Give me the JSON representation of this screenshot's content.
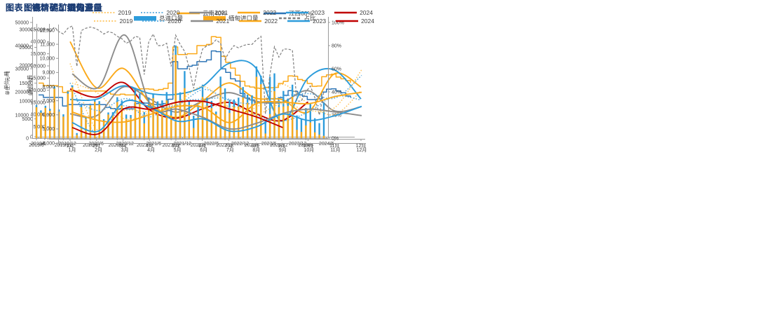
{
  "page_background": "#ffffff",
  "title_color": "#1D3E75",
  "chart_data": [
    {
      "type": "line",
      "line_mode": "step",
      "title": "图表：锡精矿加工费",
      "ylabel": "单位：元/吨",
      "ylim": [
        0,
        30000
      ],
      "y_ticks": [
        [
          30000,
          "30000"
        ],
        [
          25000,
          "25000"
        ],
        [
          20000,
          "20000"
        ],
        [
          15000,
          "15000"
        ],
        [
          10000,
          "10000"
        ],
        [
          5000,
          "5000"
        ],
        [
          0,
          "0"
        ]
      ],
      "x_tick_labels": [
        "2019/6",
        "2019/12",
        "2020/6",
        "2020/12",
        "2021/6",
        "2021/12",
        "2022/6",
        "2022/12",
        "2023/6",
        "2023/12",
        "2024/6"
      ],
      "x_tick_every": 6,
      "x_range_note": "monthly 2019/6 - 2024/11",
      "legend_position": "top-center",
      "grid": false,
      "series": [
        {
          "name": "云南40%",
          "color": "#FBA919",
          "dash": null,
          "values": [
            15000,
            14300,
            14300,
            14300,
            14000,
            12400,
            12800,
            12800,
            12800,
            12800,
            12800,
            12800,
            12800,
            12800,
            12300,
            11900,
            11700,
            11900,
            11700,
            11700,
            13000,
            13400,
            13400,
            13300,
            13000,
            13200,
            13500,
            15000,
            25100,
            23000,
            23000,
            23200,
            23200,
            25500,
            25500,
            25800,
            28000,
            27800,
            22500,
            20800,
            19200,
            17200,
            15500,
            14200,
            13900,
            13600,
            13500,
            13800,
            13700,
            13800,
            14900,
            15500,
            17000,
            16900,
            16000,
            15700,
            14900,
            14100,
            14200,
            16800,
            17300,
            17500,
            16700,
            16200,
            15700,
            15100
          ]
        },
        {
          "name": "江西60%",
          "color": "#2E75B6",
          "dash": null,
          "values": [
            11700,
            11000,
            11000,
            11000,
            11000,
            8600,
            9000,
            9000,
            9000,
            9000,
            9000,
            9000,
            9000,
            9000,
            8200,
            7900,
            7700,
            7900,
            7800,
            7800,
            9300,
            9500,
            9400,
            9300,
            9000,
            9100,
            9300,
            10500,
            21000,
            19000,
            19000,
            19700,
            20000,
            21000,
            21000,
            21500,
            24000,
            23800,
            19000,
            18000,
            16200,
            15600,
            12100,
            10800,
            10300,
            9600,
            9500,
            9700,
            9700,
            9800,
            10900,
            11600,
            12900,
            12700,
            11700,
            11300,
            10400,
            10400,
            10600,
            12500,
            13300,
            13400,
            12800,
            12300,
            11400,
            11000
          ]
        }
      ]
    },
    {
      "type": "line",
      "line_mode": "smooth",
      "title": "图表：锡矿进口量",
      "ylabel": "单位：吨",
      "ylim": [
        0,
        45000
      ],
      "y_ticks": [
        [
          45000,
          "45,000"
        ],
        [
          40000,
          "40,000"
        ],
        [
          35000,
          "35,000"
        ],
        [
          30000,
          "30,000"
        ],
        [
          25000,
          "25,000"
        ],
        [
          20000,
          "20,000"
        ],
        [
          15000,
          "15,000"
        ],
        [
          10000,
          "10,000"
        ],
        [
          5000,
          "5,000"
        ],
        [
          0,
          "-"
        ]
      ],
      "categories": [
        "1月",
        "2月",
        "3月",
        "4月",
        "5月",
        "6月",
        "7月",
        "8月",
        "9月",
        "10月",
        "11月",
        "12月"
      ],
      "legend_position": "top-right",
      "grid": false,
      "series": [
        {
          "name": "2019",
          "color": "#FFC55E",
          "dash": "dot",
          "values": [
            31000,
            4000,
            11500,
            11200,
            13800,
            13500,
            13500,
            12700,
            22400,
            14500,
            10000,
            19800
          ]
        },
        {
          "name": "2020",
          "color": "#56A8DC",
          "dash": "dot",
          "values": [
            23000,
            2000,
            13500,
            9000,
            15000,
            16300,
            16300,
            10000,
            7400,
            11000,
            17500,
            16000
          ]
        },
        {
          "name": "2021",
          "color": "#8C8C8C",
          "dash": null,
          "values": [
            10300,
            9500,
            21300,
            16500,
            11000,
            15500,
            19000,
            15500,
            15000,
            19800,
            11500,
            13200
          ]
        },
        {
          "name": "2022",
          "color": "#FBA919",
          "dash": null,
          "values": [
            40000,
            21000,
            29000,
            15000,
            8800,
            15500,
            23000,
            16800,
            16200,
            11000,
            26800,
            21300
          ]
        },
        {
          "name": "2023",
          "color": "#2D9CDB",
          "dash": null,
          "values": [
            16200,
            16300,
            21800,
            18700,
            18300,
            21500,
            31000,
            29500,
            7300,
            25000,
            28300,
            16400
          ]
        },
        {
          "name": "2024",
          "color": "#C00000",
          "dash": null,
          "values": [
            20500,
            17200,
            23200,
            12000,
            8500,
            12300,
            15000,
            10500,
            7500,
            15200
          ]
        }
      ]
    },
    {
      "type": "bar+line",
      "title": "图表：锡精矿：缅甸进口",
      "ylabel": "单位：吨",
      "ylim_left": [
        0,
        50000
      ],
      "y_ticks_left": [
        [
          50000,
          "50000"
        ],
        [
          40000,
          "40000"
        ],
        [
          30000,
          "30000"
        ],
        [
          20000,
          "20000"
        ],
        [
          10000,
          "10000"
        ],
        [
          0,
          "0"
        ]
      ],
      "ylim_right": [
        0,
        100
      ],
      "y_ticks_right": [
        [
          100,
          "100%"
        ],
        [
          80,
          "80%"
        ],
        [
          60,
          "60%"
        ],
        [
          40,
          "40%"
        ],
        [
          20,
          "20%"
        ],
        [
          0,
          "0%"
        ]
      ],
      "x_tick_labels": [
        "2019/6",
        "2019/12",
        "2020/6",
        "2020/12",
        "2021/6",
        "2021/12",
        "2022/6",
        "2022/12",
        "2023/6",
        "2023/12",
        "2024/6"
      ],
      "x_tick_every": 6,
      "x_range_note": "monthly 2019/6 - 2024/10",
      "legend_position": "top-center",
      "grid": false,
      "series_bars": [
        {
          "name": "总进口量",
          "color": "#2D9CDB",
          "values": [
            14300,
            12000,
            14000,
            12700,
            22400,
            12400,
            10300,
            20200,
            22800,
            2200,
            14300,
            9000,
            14900,
            16500,
            16000,
            8200,
            11100,
            11200,
            17700,
            16300,
            10200,
            10000,
            21100,
            19300,
            11300,
            17600,
            19000,
            15900,
            16300,
            19900,
            13200,
            40100,
            19800,
            29000,
            15800,
            9700,
            14200,
            23100,
            17400,
            16100,
            11500,
            26600,
            21500,
            16600,
            16700,
            17500,
            22100,
            18800,
            18500,
            31000,
            27000,
            7500,
            26500,
            28000,
            16400,
            20400,
            17100,
            23100,
            9800,
            8300,
            13000,
            15100,
            8600,
            6500,
            15400
          ]
        },
        {
          "name": "缅甸进口量",
          "color": "#FBA919",
          "values": [
            13400,
            11000,
            13100,
            11800,
            21400,
            11400,
            9300,
            19200,
            22000,
            1400,
            13400,
            8400,
            14200,
            15700,
            14600,
            7400,
            10200,
            10300,
            15700,
            14100,
            8400,
            8700,
            18500,
            16700,
            6400,
            14600,
            17300,
            12700,
            13100,
            16300,
            9800,
            36000,
            16000,
            21600,
            9700,
            4400,
            9100,
            17800,
            14000,
            13000,
            10300,
            21900,
            16400,
            10900,
            13500,
            13700,
            17600,
            15300,
            15000,
            26500,
            23300,
            2000,
            10400,
            20300,
            13400,
            13700,
            13900,
            17900,
            3600,
            2700,
            5500,
            6800,
            2500,
            1500,
            1000
          ]
        }
      ],
      "series_line": {
        "name": "占比",
        "color": "#7F7F7F",
        "unit": "%",
        "values": [
          94,
          92,
          95,
          92,
          96,
          92,
          90,
          95,
          97,
          62,
          93,
          95,
          96,
          95,
          93,
          90,
          92,
          91,
          88,
          86,
          82,
          84,
          88,
          87,
          55,
          83,
          90,
          80,
          80,
          82,
          62,
          89,
          81,
          75,
          61,
          43,
          63,
          77,
          80,
          81,
          85,
          82,
          68,
          75,
          80,
          78,
          80,
          81,
          81,
          85,
          88,
          21,
          55,
          79,
          70,
          77,
          77,
          76,
          32,
          32,
          40,
          45,
          35,
          20,
          40
        ]
      }
    },
    {
      "type": "line",
      "line_mode": "smooth",
      "title": "图表：锡矿国内产量",
      "ylabel": "单位：吨",
      "ylim": [
        4000,
        12000
      ],
      "y_ticks": [
        [
          12000,
          "12,000"
        ],
        [
          11000,
          "11,000"
        ],
        [
          10000,
          "10,000"
        ],
        [
          9000,
          "9,000"
        ],
        [
          8000,
          "8,000"
        ],
        [
          7000,
          "7,000"
        ],
        [
          6000,
          "6,000"
        ],
        [
          5000,
          "5,000"
        ],
        [
          4000,
          "4,000"
        ]
      ],
      "categories": [
        "1月",
        "2月",
        "3月",
        "4月",
        "5月",
        "6月",
        "7月",
        "8月",
        "9月",
        "10月",
        "11月",
        "12月"
      ],
      "legend_position": "top-right",
      "grid": false,
      "series": [
        {
          "name": "2019",
          "color": "#FFC55E",
          "dash": "dot",
          "values": [
            8250,
            7500,
            5700,
            6200,
            6900,
            8000,
            6500,
            6050,
            6800,
            6300,
            6550,
            9200
          ]
        },
        {
          "name": "2020",
          "color": "#56A8DC",
          "dash": "dot",
          "values": [
            7200,
            6300,
            7150,
            6600,
            6700,
            7800,
            7000,
            6800,
            7300,
            7500,
            7200,
            8800
          ]
        },
        {
          "name": "2021",
          "color": "#8C8C8C",
          "dash": null,
          "values": [
            8900,
            7950,
            11650,
            6600,
            6400,
            5800,
            5000,
            5400,
            6100,
            6400,
            6200,
            5950
          ]
        },
        {
          "name": "2022",
          "color": "#FBA919",
          "dash": null,
          "values": [
            6200,
            5600,
            5500,
            6050,
            6600,
            6500,
            5450,
            6800,
            6900,
            6800,
            7300,
            7600
          ]
        },
        {
          "name": "2023",
          "color": "#2D9CDB",
          "dash": null,
          "values": [
            5450,
            4850,
            6950,
            6500,
            5550,
            5700,
            4850,
            5150,
            6050,
            5600,
            5950,
            6600
          ]
        },
        {
          "name": "2024",
          "color": "#C00000",
          "dash": null,
          "values": [
            5100,
            4650,
            6450,
            6400,
            6900,
            6950,
            6400,
            5850,
            5100
          ]
        }
      ]
    }
  ]
}
